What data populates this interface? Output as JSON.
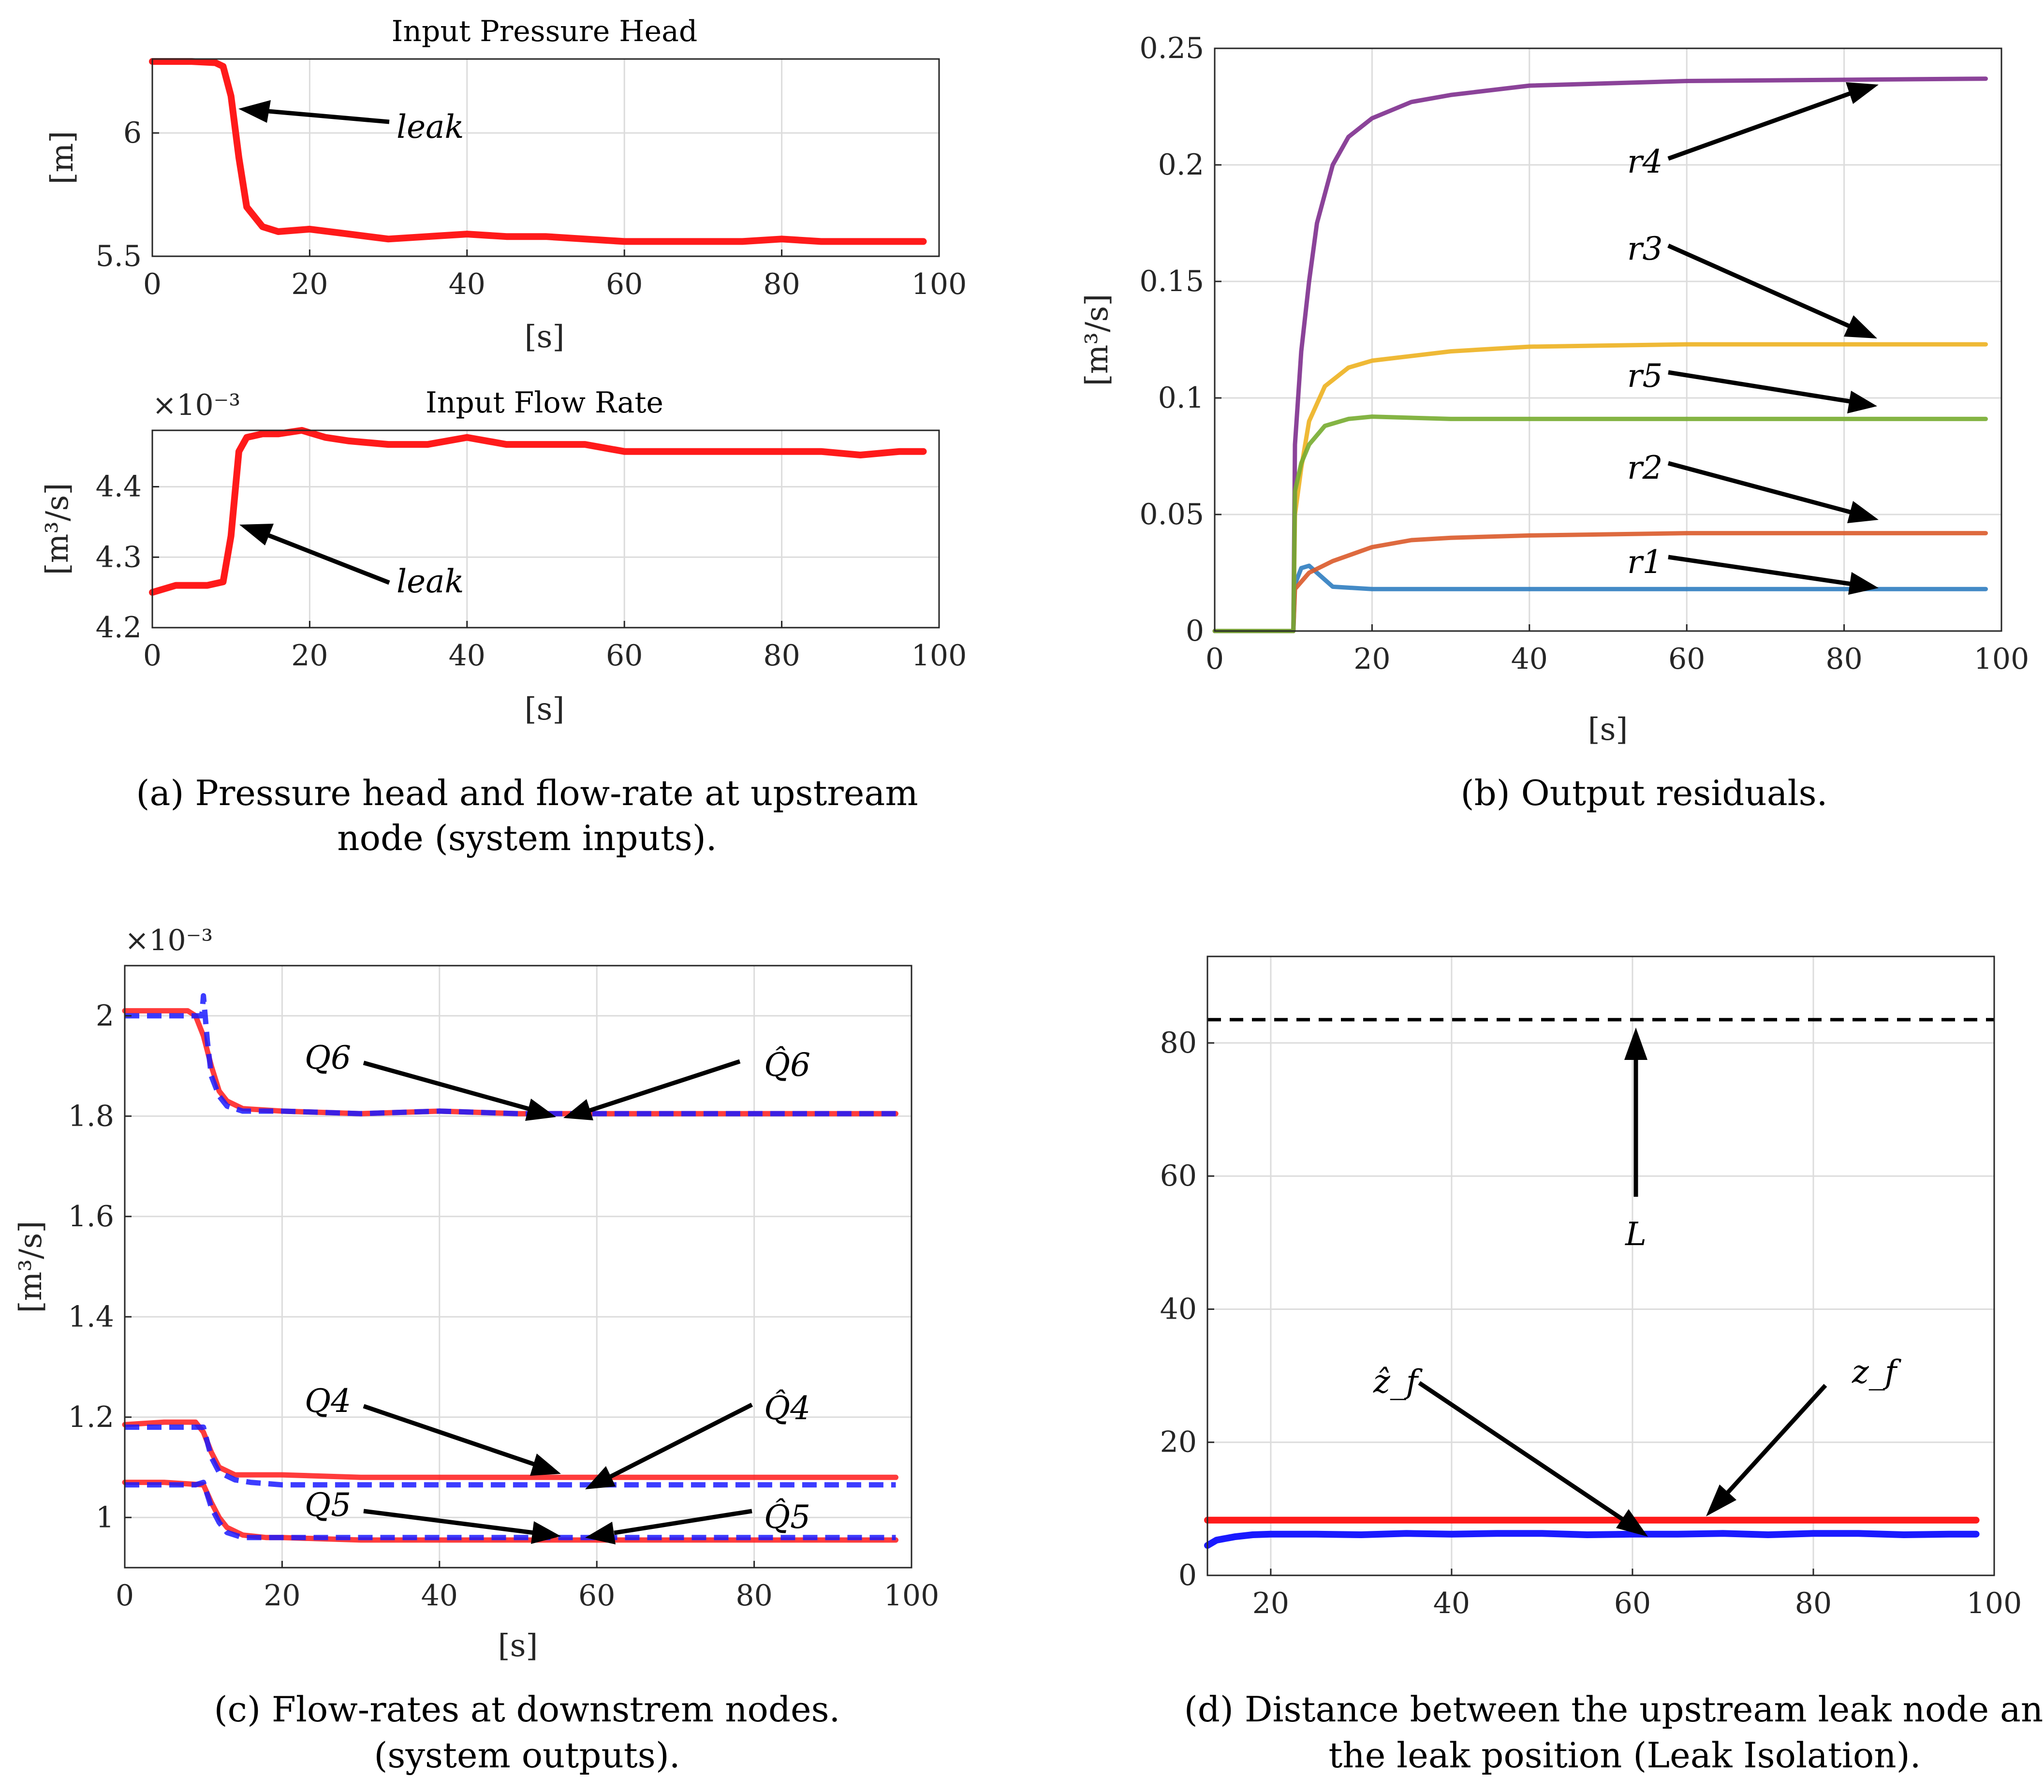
{
  "colors": {
    "red": "#ff1a1a",
    "blue": "#1a1aff",
    "r1": "#2f7dc0",
    "r2": "#da5a2a",
    "r3": "#edb120",
    "r4": "#7e2f8e",
    "r5": "#77ac30",
    "black": "#000000"
  },
  "chart_data": [
    {
      "id": "a1",
      "type": "line",
      "title": "Input Pressure Head",
      "xlabel": "[s]",
      "ylabel": "[m]",
      "xlim": [
        0,
        100
      ],
      "ylim": [
        5.5,
        6.3
      ],
      "xticks": [
        "0",
        "20",
        "40",
        "60",
        "80",
        "100"
      ],
      "yticks": [
        "5.5",
        "6"
      ],
      "grid": true,
      "series": [
        {
          "name": "pressure head",
          "color": "red",
          "x": [
            0,
            5,
            8,
            9,
            10,
            11,
            12,
            14,
            16,
            20,
            25,
            30,
            35,
            40,
            45,
            50,
            55,
            60,
            65,
            70,
            75,
            80,
            85,
            90,
            95,
            98
          ],
          "y": [
            6.29,
            6.29,
            6.285,
            6.27,
            6.15,
            5.9,
            5.7,
            5.62,
            5.6,
            5.61,
            5.59,
            5.57,
            5.58,
            5.59,
            5.58,
            5.58,
            5.57,
            5.56,
            5.56,
            5.56,
            5.56,
            5.57,
            5.56,
            5.56,
            5.56,
            5.56
          ]
        }
      ],
      "annotations": [
        {
          "text": "leak",
          "at": [
            10,
            6.1
          ]
        }
      ]
    },
    {
      "id": "a2",
      "type": "line",
      "title": "Input Flow Rate",
      "exponent": "×10⁻³",
      "xlabel": "[s]",
      "ylabel": "[m³/s]",
      "xlim": [
        0,
        100
      ],
      "ylim": [
        4.2,
        4.48
      ],
      "xticks": [
        "0",
        "20",
        "40",
        "60",
        "80",
        "100"
      ],
      "yticks": [
        "4.2",
        "4.3",
        "4.4"
      ],
      "grid": true,
      "series": [
        {
          "name": "flow rate",
          "color": "red",
          "x": [
            0,
            3,
            5,
            7,
            9,
            10,
            11,
            12,
            14,
            16,
            19,
            22,
            25,
            30,
            35,
            40,
            45,
            50,
            55,
            60,
            65,
            70,
            75,
            80,
            85,
            90,
            95,
            98
          ],
          "y": [
            4.25,
            4.26,
            4.26,
            4.26,
            4.265,
            4.33,
            4.45,
            4.47,
            4.475,
            4.475,
            4.48,
            4.47,
            4.465,
            4.46,
            4.46,
            4.47,
            4.46,
            4.46,
            4.46,
            4.45,
            4.45,
            4.45,
            4.45,
            4.45,
            4.45,
            4.445,
            4.45,
            4.45
          ]
        }
      ],
      "annotations": [
        {
          "text": "leak",
          "at": [
            11,
            4.35
          ]
        }
      ]
    },
    {
      "id": "b",
      "type": "line",
      "title": "",
      "xlabel": "[s]",
      "ylabel": "[m³/s]",
      "xlim": [
        0,
        100
      ],
      "ylim": [
        0,
        0.25
      ],
      "xticks": [
        "0",
        "20",
        "40",
        "60",
        "80",
        "100"
      ],
      "yticks": [
        "0",
        "0.05",
        "0.1",
        "0.15",
        "0.2",
        "0.25"
      ],
      "grid": true,
      "series": [
        {
          "name": "r1",
          "color": "r1",
          "x": [
            0,
            10,
            10.2,
            11,
            12,
            13,
            15,
            20,
            30,
            50,
            98
          ],
          "y": [
            0,
            0,
            0.02,
            0.027,
            0.028,
            0.025,
            0.019,
            0.018,
            0.018,
            0.018,
            0.018
          ]
        },
        {
          "name": "r2",
          "color": "r2",
          "x": [
            0,
            10,
            10.2,
            12,
            15,
            20,
            25,
            30,
            40,
            60,
            98
          ],
          "y": [
            0,
            0,
            0.018,
            0.025,
            0.03,
            0.036,
            0.039,
            0.04,
            0.041,
            0.042,
            0.042
          ]
        },
        {
          "name": "r3",
          "color": "r3",
          "x": [
            0,
            10,
            10.2,
            11,
            12,
            14,
            17,
            20,
            30,
            40,
            60,
            98
          ],
          "y": [
            0,
            0,
            0.05,
            0.07,
            0.09,
            0.105,
            0.113,
            0.116,
            0.12,
            0.122,
            0.123,
            0.123
          ]
        },
        {
          "name": "r4",
          "color": "r4",
          "x": [
            0,
            10,
            10.2,
            11,
            12,
            13,
            15,
            17,
            20,
            25,
            30,
            40,
            60,
            98
          ],
          "y": [
            0,
            0,
            0.08,
            0.12,
            0.15,
            0.175,
            0.2,
            0.212,
            0.22,
            0.227,
            0.23,
            0.234,
            0.236,
            0.237
          ]
        },
        {
          "name": "r5",
          "color": "r5",
          "x": [
            0,
            10,
            10.2,
            11,
            12,
            14,
            17,
            20,
            30,
            98
          ],
          "y": [
            0,
            0,
            0.06,
            0.072,
            0.08,
            0.088,
            0.091,
            0.092,
            0.091,
            0.091
          ]
        }
      ],
      "annotations": [
        {
          "text": "r4",
          "at": [
            84,
            0.235
          ]
        },
        {
          "text": "r3",
          "at": [
            84,
            0.127
          ]
        },
        {
          "text": "r5",
          "at": [
            84,
            0.095
          ]
        },
        {
          "text": "r2",
          "at": [
            84,
            0.046
          ]
        },
        {
          "text": "r1",
          "at": [
            84,
            0.018
          ]
        }
      ]
    },
    {
      "id": "c",
      "type": "line",
      "title": "",
      "exponent": "×10⁻³",
      "xlabel": "[s]",
      "ylabel": "[m³/s]",
      "xlim": [
        0,
        100
      ],
      "ylim": [
        0.9,
        2.1
      ],
      "xticks": [
        "0",
        "20",
        "40",
        "60",
        "80",
        "100"
      ],
      "yticks": [
        "1",
        "1.2",
        "1.4",
        "1.6",
        "1.8",
        "2"
      ],
      "grid": true,
      "series": [
        {
          "name": "Q6",
          "color": "red",
          "style": "solid",
          "x": [
            0,
            5,
            8,
            9,
            10,
            11,
            12,
            13,
            15,
            20,
            30,
            40,
            50,
            60,
            70,
            80,
            90,
            98
          ],
          "y": [
            2.01,
            2.01,
            2.01,
            2.0,
            1.96,
            1.9,
            1.85,
            1.83,
            1.815,
            1.81,
            1.805,
            1.81,
            1.805,
            1.805,
            1.805,
            1.805,
            1.805,
            1.805
          ]
        },
        {
          "name": "Q̂6",
          "color": "blue",
          "style": "dashed",
          "x": [
            0,
            8,
            9.8,
            10,
            10.5,
            11,
            12,
            13,
            15,
            20,
            30,
            40,
            50,
            60,
            70,
            80,
            90,
            98
          ],
          "y": [
            2.0,
            2.0,
            2.0,
            2.04,
            1.95,
            1.88,
            1.84,
            1.82,
            1.81,
            1.81,
            1.805,
            1.81,
            1.805,
            1.805,
            1.805,
            1.805,
            1.805,
            1.805
          ]
        },
        {
          "name": "Q4",
          "color": "red",
          "style": "solid",
          "x": [
            0,
            5,
            9,
            10,
            11,
            12,
            14,
            16,
            20,
            30,
            40,
            50,
            60,
            70,
            80,
            90,
            98
          ],
          "y": [
            1.185,
            1.19,
            1.19,
            1.17,
            1.13,
            1.1,
            1.085,
            1.085,
            1.085,
            1.08,
            1.08,
            1.08,
            1.08,
            1.08,
            1.08,
            1.08,
            1.08
          ]
        },
        {
          "name": "Q̂4",
          "color": "blue",
          "style": "dashed",
          "x": [
            0,
            9,
            10,
            11,
            12,
            14,
            16,
            20,
            30,
            40,
            50,
            60,
            70,
            80,
            90,
            98
          ],
          "y": [
            1.18,
            1.18,
            1.18,
            1.12,
            1.09,
            1.075,
            1.07,
            1.065,
            1.065,
            1.065,
            1.065,
            1.065,
            1.065,
            1.065,
            1.065,
            1.065
          ]
        },
        {
          "name": "Q5",
          "color": "red",
          "style": "solid",
          "x": [
            0,
            5,
            10,
            11,
            12,
            13,
            15,
            18,
            20,
            30,
            40,
            50,
            60,
            70,
            80,
            90,
            98
          ],
          "y": [
            1.07,
            1.07,
            1.065,
            1.03,
            1.0,
            0.98,
            0.965,
            0.96,
            0.96,
            0.955,
            0.955,
            0.955,
            0.955,
            0.955,
            0.955,
            0.955,
            0.955
          ]
        },
        {
          "name": "Q̂5",
          "color": "blue",
          "style": "dashed",
          "x": [
            0,
            9,
            10,
            11,
            12,
            13,
            15,
            20,
            30,
            40,
            50,
            60,
            70,
            80,
            90,
            98
          ],
          "y": [
            1.065,
            1.065,
            1.07,
            1.02,
            0.99,
            0.97,
            0.96,
            0.96,
            0.96,
            0.96,
            0.96,
            0.96,
            0.96,
            0.96,
            0.96,
            0.96
          ]
        }
      ],
      "annotations": [
        {
          "text": "Q6",
          "at": [
            55,
            1.8
          ]
        },
        {
          "text": "Q̂6",
          "at": [
            56,
            1.8
          ]
        },
        {
          "text": "Q4",
          "at": [
            55,
            1.08
          ]
        },
        {
          "text": "Q̂4",
          "at": [
            58,
            1.07
          ]
        },
        {
          "text": "Q5",
          "at": [
            55,
            0.96
          ]
        },
        {
          "text": "Q̂5",
          "at": [
            58,
            0.955
          ]
        }
      ]
    },
    {
      "id": "d",
      "type": "line",
      "title": "",
      "xlabel": "",
      "ylabel": "",
      "xlim": [
        13,
        100
      ],
      "ylim": [
        0,
        93
      ],
      "xticks": [
        "20",
        "40",
        "60",
        "80",
        "100"
      ],
      "yticks": [
        "0",
        "20",
        "40",
        "60",
        "80"
      ],
      "grid": true,
      "series": [
        {
          "name": "L",
          "color": "black",
          "style": "dashed",
          "x": [
            13,
            100
          ],
          "y": [
            83.5,
            83.5
          ]
        },
        {
          "name": "z_f",
          "color": "red",
          "style": "solid",
          "x": [
            13,
            98
          ],
          "y": [
            8.3,
            8.3
          ]
        },
        {
          "name": "ẑ_f",
          "color": "blue",
          "style": "solid",
          "x": [
            13,
            14,
            16,
            18,
            20,
            25,
            30,
            35,
            40,
            45,
            50,
            55,
            60,
            65,
            70,
            75,
            80,
            85,
            90,
            95,
            98
          ],
          "y": [
            4.5,
            5.3,
            5.8,
            6.1,
            6.2,
            6.2,
            6.1,
            6.3,
            6.2,
            6.3,
            6.3,
            6.1,
            6.2,
            6.2,
            6.3,
            6.1,
            6.3,
            6.3,
            6.1,
            6.2,
            6.2
          ]
        }
      ],
      "annotations": [
        {
          "text": "L",
          "at": [
            60,
            83.5
          ]
        },
        {
          "text": "ẑ_f",
          "at": [
            60,
            6.5
          ]
        },
        {
          "text": "z_f",
          "at": [
            67,
            8.3
          ]
        }
      ]
    }
  ],
  "captions": {
    "a_line1": "(a) Pressure head and flow-rate at upstream",
    "a_line2": "node (system inputs).",
    "b": "(b) Output residuals.",
    "c_line1": "(c) Flow-rates at downstrem nodes.",
    "c_line2": "(system outputs).",
    "d_line1": "(d) Distance between the upstream leak node and",
    "d_line2": "the leak position (Leak Isolation)."
  }
}
